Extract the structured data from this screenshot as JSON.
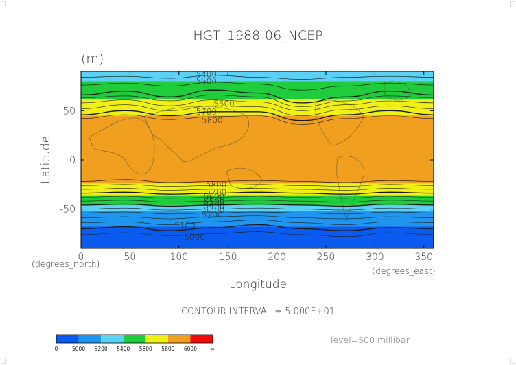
{
  "chart_data": {
    "type": "heatmap",
    "title": "HGT_1988-06_NCEP",
    "units": "(m)",
    "xlabel": "Longitude",
    "ylabel": "Latitude",
    "x_unit_label": "(degrees_east)",
    "y_unit_label": "(degrees_north)",
    "xlim": [
      0,
      360
    ],
    "ylim": [
      -90,
      90
    ],
    "x_ticks": [
      0,
      50,
      100,
      150,
      200,
      250,
      300,
      350
    ],
    "y_ticks": [
      50,
      0,
      -50
    ],
    "contour_interval_text": "CONTOUR INTERVAL = 5.000E+01",
    "level_text": "level=500 millibar",
    "colorbar": {
      "labels": [
        "0",
        "5000",
        "5200",
        "5400",
        "5600",
        "5800",
        "6000",
        "∞"
      ],
      "colors": [
        "#0a5bf0",
        "#1e96f0",
        "#5ad2f5",
        "#1ecc3c",
        "#f0f014",
        "#f0a01e",
        "#f00a0a"
      ]
    },
    "zonal_bands": [
      {
        "lat_top": 90,
        "lat_bottom": 80,
        "color": "#5ad2f5",
        "value_range": [
          5400,
          5500
        ]
      },
      {
        "lat_top": 80,
        "lat_bottom": 62,
        "color": "#1ecc3c",
        "value_range": [
          5500,
          5600
        ]
      },
      {
        "lat_top": 62,
        "lat_bottom": 45,
        "color": "#f0f014",
        "value_range": [
          5600,
          5800
        ]
      },
      {
        "lat_top": 45,
        "lat_bottom": -24,
        "color": "#f0a01e",
        "value_range": [
          5800,
          6000
        ]
      },
      {
        "lat_top": -24,
        "lat_bottom": -36,
        "color": "#f0f014",
        "value_range": [
          5600,
          5800
        ]
      },
      {
        "lat_top": -36,
        "lat_bottom": -46,
        "color": "#1ecc3c",
        "value_range": [
          5500,
          5600
        ]
      },
      {
        "lat_top": -46,
        "lat_bottom": -52,
        "color": "#5ad2f5",
        "value_range": [
          5400,
          5500
        ]
      },
      {
        "lat_top": -52,
        "lat_bottom": -68,
        "color": "#1e96f0",
        "value_range": [
          5200,
          5400
        ]
      },
      {
        "lat_top": -68,
        "lat_bottom": -90,
        "color": "#0a5bf0",
        "value_range": [
          0,
          5200
        ]
      }
    ],
    "contour_labels": [
      {
        "text": "5400",
        "lon": 128,
        "lat": 87
      },
      {
        "text": "5500",
        "lon": 128,
        "lat": 80
      },
      {
        "text": "5600",
        "lon": 146,
        "lat": 57
      },
      {
        "text": "5700",
        "lon": 128,
        "lat": 49
      },
      {
        "text": "5800",
        "lon": 134,
        "lat": 40
      },
      {
        "text": "5800",
        "lon": 138,
        "lat": -25
      },
      {
        "text": "5700",
        "lon": 138,
        "lat": -33
      },
      {
        "text": "5600",
        "lon": 136,
        "lat": -38
      },
      {
        "text": "5500",
        "lon": 136,
        "lat": -43
      },
      {
        "text": "5400",
        "lon": 136,
        "lat": -47
      },
      {
        "text": "5300",
        "lon": 136,
        "lat": -51
      },
      {
        "text": "5200",
        "lon": 134,
        "lat": -56
      },
      {
        "text": "5100",
        "lon": 106,
        "lat": -67
      },
      {
        "text": "5000",
        "lon": 116,
        "lat": -79
      }
    ],
    "contour_lines": [
      {
        "lats": [
          84,
          85,
          83,
          86,
          84,
          82,
          84,
          85,
          84
        ],
        "width": 0.7
      },
      {
        "lats": [
          76,
          78,
          75,
          79,
          77,
          71,
          75,
          78,
          76
        ],
        "width": 0.7
      },
      {
        "lats": [
          66,
          70,
          64,
          71,
          68,
          58,
          64,
          70,
          66
        ],
        "width": 1.3
      },
      {
        "lats": [
          63,
          65,
          60,
          66,
          64,
          54,
          60,
          65,
          63
        ],
        "width": 0.6
      },
      {
        "lats": [
          58,
          61,
          55,
          61,
          59,
          50,
          56,
          60,
          58
        ],
        "width": 0.6
      },
      {
        "lats": [
          52,
          56,
          50,
          55,
          54,
          45,
          51,
          55,
          52
        ],
        "width": 0.6
      },
      {
        "lats": [
          46,
          50,
          45,
          49,
          49,
          40,
          46,
          50,
          46
        ],
        "width": 1.3
      },
      {
        "lats": [
          42,
          46,
          41,
          44,
          45,
          36,
          42,
          45,
          42
        ],
        "width": 0.6
      },
      {
        "lats": [
          -22,
          -20,
          -23,
          -22,
          -21,
          -22,
          -23,
          -21,
          -22
        ],
        "width": 0.7
      },
      {
        "lats": [
          -26,
          -25,
          -27,
          -26,
          -25,
          -26,
          -27,
          -25,
          -26
        ],
        "width": 0.6
      },
      {
        "lats": [
          -30,
          -29,
          -31,
          -30,
          -29,
          -30,
          -31,
          -29,
          -30
        ],
        "width": 0.6
      },
      {
        "lats": [
          -34,
          -33,
          -35,
          -34,
          -33,
          -34,
          -35,
          -33,
          -34
        ],
        "width": 1.3
      },
      {
        "lats": [
          -38,
          -37,
          -39,
          -38,
          -37,
          -38,
          -39,
          -37,
          -38
        ],
        "width": 0.6
      },
      {
        "lats": [
          -42,
          -41,
          -43,
          -42,
          -41,
          -42,
          -43,
          -41,
          -42
        ],
        "width": 0.6
      },
      {
        "lats": [
          -46,
          -45,
          -47,
          -46,
          -45,
          -46,
          -47,
          -45,
          -46
        ],
        "width": 1.3
      },
      {
        "lats": [
          -50,
          -49,
          -51,
          -50,
          -49,
          -50,
          -51,
          -49,
          -50
        ],
        "width": 0.6
      },
      {
        "lats": [
          -54,
          -53,
          -55,
          -54,
          -53,
          -54,
          -55,
          -53,
          -54
        ],
        "width": 0.6
      },
      {
        "lats": [
          -59,
          -58,
          -60,
          -58,
          -57,
          -59,
          -60,
          -58,
          -59
        ],
        "width": 0.6
      },
      {
        "lats": [
          -64,
          -63,
          -66,
          -63,
          -61,
          -64,
          -66,
          -63,
          -64
        ],
        "width": 0.6
      },
      {
        "lats": [
          -70,
          -68,
          -72,
          -69,
          -66,
          -70,
          -72,
          -69,
          -70
        ],
        "width": 1.3
      },
      {
        "lats": [
          -76,
          -74,
          -77,
          -75,
          -73,
          -76,
          -78,
          -74,
          -76
        ],
        "width": 0.6
      }
    ]
  }
}
